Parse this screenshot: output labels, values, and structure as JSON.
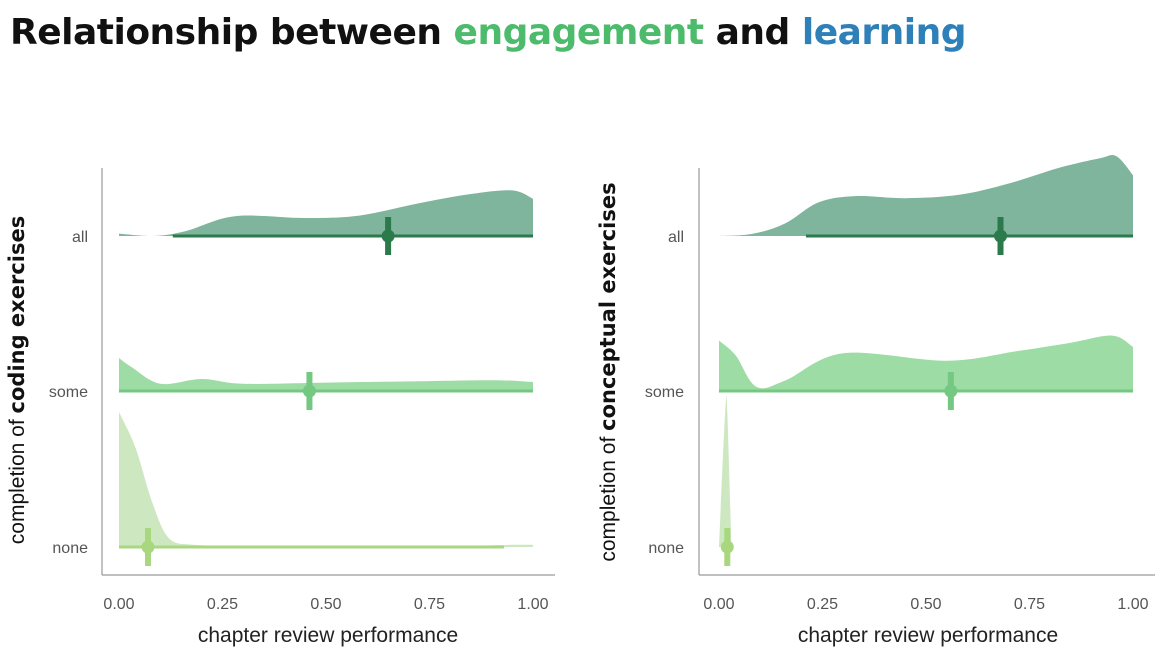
{
  "title": {
    "prefix": "Relationship between ",
    "word1": "engagement",
    "middle": " and ",
    "word2": "learning"
  },
  "colors": {
    "engagement": "#4cbb6b",
    "learning": "#2e80b8",
    "all": "#2b7a4b",
    "all_fill": "#7fb59c",
    "some": "#74c882",
    "some_fill": "#9ddca4",
    "none": "#a9d77f",
    "none_fill": "#cde8c0"
  },
  "chart_data": [
    {
      "type": "raincloud",
      "xlabel": "chapter review performance",
      "ylabel_prefix": "completion of ",
      "ylabel_bold": "coding exercises",
      "xlim": [
        0,
        1
      ],
      "xticks": [
        "0.00",
        "0.25",
        "0.50",
        "0.75",
        "1.00"
      ],
      "categories": [
        "all",
        "some",
        "none"
      ],
      "groups": [
        {
          "name": "all",
          "point": 0.65,
          "interval": [
            0.13,
            1.0
          ],
          "se": [
            0.64,
            0.66
          ],
          "density": [
            [
              0.0,
              0.04
            ],
            [
              0.08,
              0.0
            ],
            [
              0.16,
              0.08
            ],
            [
              0.28,
              0.33
            ],
            [
              0.45,
              0.3
            ],
            [
              0.58,
              0.34
            ],
            [
              0.72,
              0.54
            ],
            [
              0.85,
              0.7
            ],
            [
              0.95,
              0.76
            ],
            [
              1.0,
              0.62
            ]
          ]
        },
        {
          "name": "some",
          "point": 0.46,
          "interval": [
            0.0,
            1.0
          ],
          "se": [
            0.45,
            0.47
          ],
          "density": [
            [
              0.0,
              0.55
            ],
            [
              0.03,
              0.4
            ],
            [
              0.1,
              0.12
            ],
            [
              0.2,
              0.2
            ],
            [
              0.3,
              0.12
            ],
            [
              0.5,
              0.14
            ],
            [
              0.7,
              0.16
            ],
            [
              0.9,
              0.18
            ],
            [
              1.0,
              0.15
            ]
          ]
        },
        {
          "name": "none",
          "point": 0.07,
          "interval": [
            0.0,
            0.93
          ],
          "se": [
            0.06,
            0.08
          ],
          "density": [
            [
              0.0,
              3.0
            ],
            [
              0.04,
              2.2
            ],
            [
              0.08,
              1.0
            ],
            [
              0.12,
              0.2
            ],
            [
              0.18,
              0.05
            ],
            [
              0.3,
              0.03
            ],
            [
              0.5,
              0.01
            ],
            [
              0.7,
              0.02
            ],
            [
              0.85,
              0.03
            ],
            [
              0.95,
              0.05
            ],
            [
              1.0,
              0.05
            ]
          ]
        }
      ]
    },
    {
      "type": "raincloud",
      "xlabel": "chapter review performance",
      "ylabel_prefix": "completion of ",
      "ylabel_bold": "conceptual exercises",
      "xlim": [
        0,
        1
      ],
      "xticks": [
        "0.00",
        "0.25",
        "0.50",
        "0.75",
        "1.00"
      ],
      "categories": [
        "all",
        "some",
        "none"
      ],
      "groups": [
        {
          "name": "all",
          "point": 0.68,
          "interval": [
            0.21,
            1.0
          ],
          "se": [
            0.67,
            0.69
          ],
          "density": [
            [
              0.0,
              0.0
            ],
            [
              0.08,
              0.05
            ],
            [
              0.16,
              0.3
            ],
            [
              0.24,
              0.8
            ],
            [
              0.33,
              0.95
            ],
            [
              0.45,
              0.9
            ],
            [
              0.58,
              0.98
            ],
            [
              0.7,
              1.25
            ],
            [
              0.82,
              1.62
            ],
            [
              0.92,
              1.85
            ],
            [
              0.96,
              1.9
            ],
            [
              1.0,
              1.45
            ]
          ]
        },
        {
          "name": "some",
          "point": 0.56,
          "interval": [
            0.0,
            1.0
          ],
          "se": [
            0.55,
            0.57
          ],
          "density": [
            [
              0.0,
              1.2
            ],
            [
              0.04,
              0.85
            ],
            [
              0.09,
              0.1
            ],
            [
              0.16,
              0.25
            ],
            [
              0.3,
              0.9
            ],
            [
              0.55,
              0.72
            ],
            [
              0.72,
              0.95
            ],
            [
              0.85,
              1.15
            ],
            [
              0.95,
              1.32
            ],
            [
              1.0,
              1.05
            ]
          ]
        },
        {
          "name": "none",
          "point": 0.02,
          "interval": [
            0.02,
            0.03
          ],
          "se": [
            0.01,
            0.03
          ],
          "density": [
            [
              0.0,
              0.0
            ],
            [
              0.015,
              3.0
            ],
            [
              0.02,
              3.0
            ],
            [
              0.03,
              0.0
            ]
          ]
        }
      ]
    }
  ]
}
